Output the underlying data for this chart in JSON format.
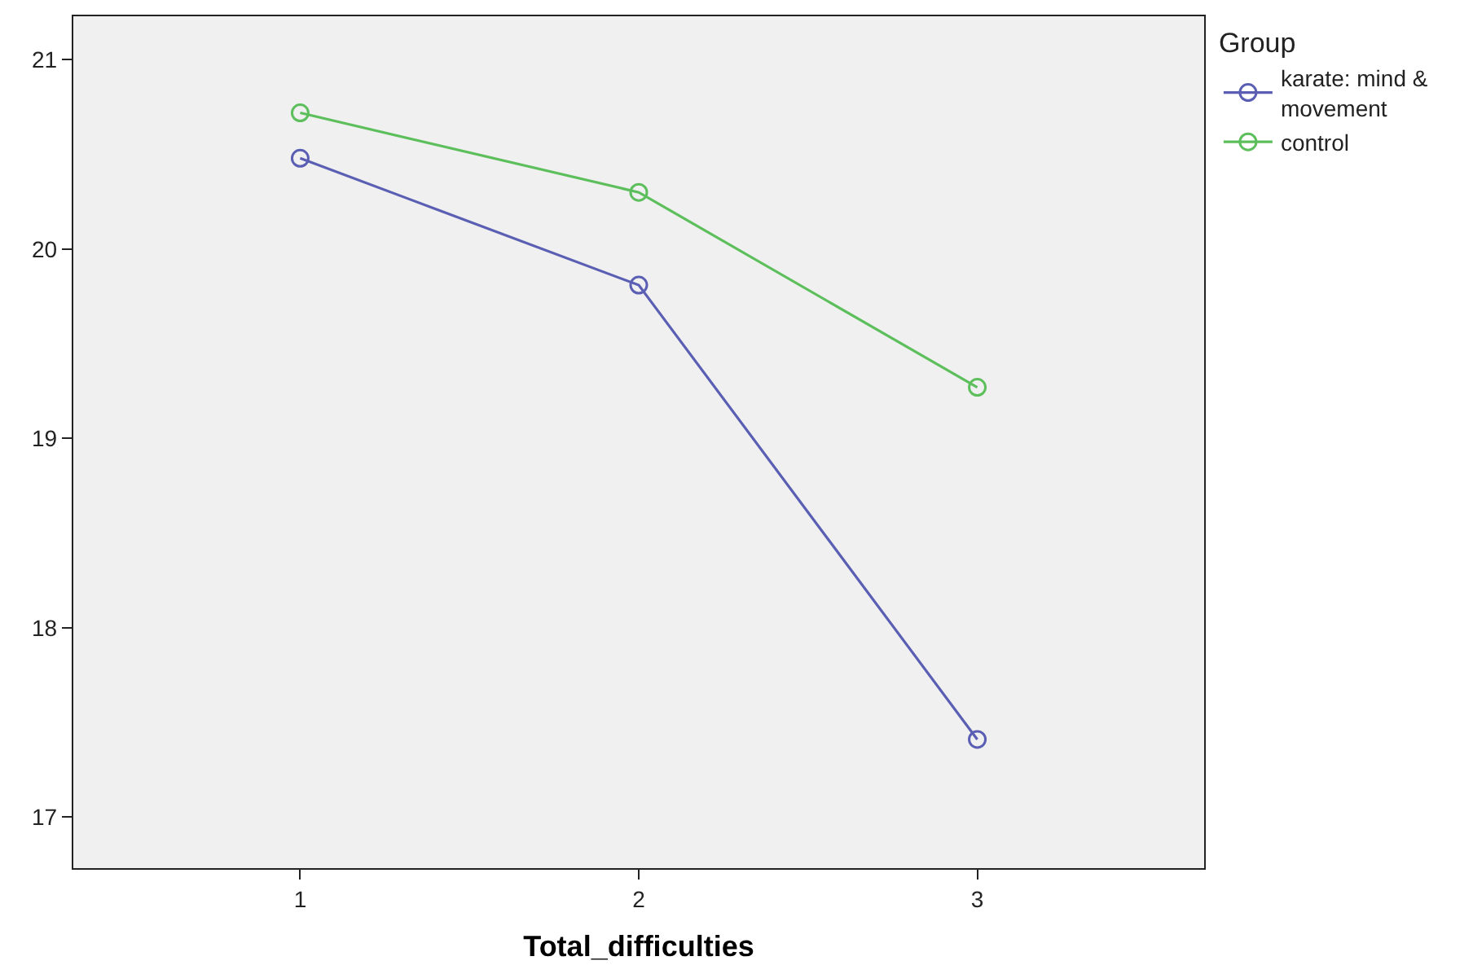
{
  "chart_data": {
    "type": "line",
    "xlabel": "Total_difficulties",
    "legend_title": "Group",
    "x": [
      1,
      2,
      3
    ],
    "xlim": [
      0.33,
      3.67
    ],
    "xticks": [
      1,
      2,
      3
    ],
    "ylim": [
      16.73,
      21.23
    ],
    "yticks": [
      17,
      18,
      19,
      20,
      21
    ],
    "series": [
      {
        "name": "karate: mind & movement",
        "color": "#5a5fb4",
        "values": [
          20.48,
          19.81,
          17.41
        ]
      },
      {
        "name": "control",
        "color": "#5cbf5c",
        "values": [
          20.72,
          20.3,
          19.27
        ]
      }
    ],
    "marker": "circle",
    "line_style": "solid",
    "grid": false,
    "legend": "top right"
  }
}
